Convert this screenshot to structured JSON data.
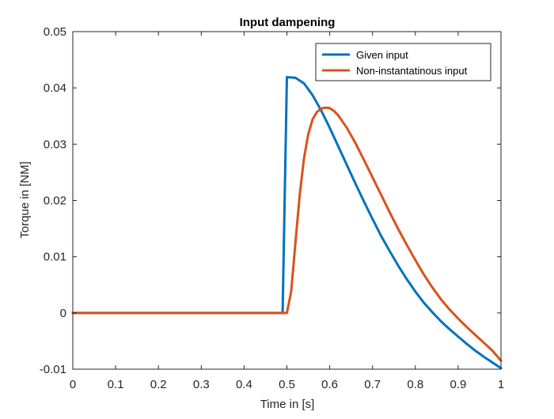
{
  "chart_data": {
    "type": "line",
    "title": "Input dampening",
    "xlabel": "Time in [s]",
    "ylabel": "Torque in [NM]",
    "xlim": [
      0,
      1
    ],
    "ylim": [
      -0.01,
      0.05
    ],
    "xticks": [
      0,
      0.1,
      0.2,
      0.3,
      0.4,
      0.5,
      0.6,
      0.7,
      0.8,
      0.9,
      1
    ],
    "xtick_labels": [
      "0",
      "0.1",
      "0.2",
      "0.3",
      "0.4",
      "0.5",
      "0.6",
      "0.7",
      "0.8",
      "0.9",
      "1"
    ],
    "yticks": [
      -0.01,
      0,
      0.01,
      0.02,
      0.03,
      0.04,
      0.05
    ],
    "ytick_labels": [
      "-0.01",
      "0",
      "0.01",
      "0.02",
      "0.03",
      "0.04",
      "0.05"
    ],
    "grid": false,
    "legend_position": "top-right",
    "series": [
      {
        "name": "Given input",
        "color": "#0072BD",
        "x": [
          0,
          0.49,
          0.5,
          0.52,
          0.54,
          0.56,
          0.58,
          0.6,
          0.62,
          0.64,
          0.66,
          0.68,
          0.7,
          0.72,
          0.74,
          0.76,
          0.78,
          0.8,
          0.82,
          0.84,
          0.86,
          0.88,
          0.9,
          0.92,
          0.94,
          0.96,
          0.98,
          1.0
        ],
        "y": [
          0,
          0,
          0.0419,
          0.0418,
          0.0408,
          0.0387,
          0.036,
          0.0329,
          0.0296,
          0.0263,
          0.023,
          0.0198,
          0.0167,
          0.0137,
          0.011,
          0.0084,
          0.006,
          0.0038,
          0.0018,
          0.0001,
          -0.0015,
          -0.0029,
          -0.0042,
          -0.0055,
          -0.0067,
          -0.0078,
          -0.0088,
          -0.0098
        ]
      },
      {
        "name": "Non-instantatinous input",
        "color": "#D95319",
        "x": [
          0,
          0.5,
          0.51,
          0.52,
          0.53,
          0.54,
          0.55,
          0.56,
          0.57,
          0.58,
          0.59,
          0.6,
          0.61,
          0.62,
          0.64,
          0.66,
          0.68,
          0.7,
          0.72,
          0.74,
          0.76,
          0.78,
          0.8,
          0.82,
          0.84,
          0.86,
          0.88,
          0.9,
          0.92,
          0.94,
          0.96,
          0.98,
          1.0
        ],
        "y": [
          0,
          0,
          0.0038,
          0.0125,
          0.021,
          0.0275,
          0.0318,
          0.0344,
          0.0357,
          0.0363,
          0.0365,
          0.0364,
          0.0359,
          0.0351,
          0.0329,
          0.0302,
          0.0272,
          0.0241,
          0.021,
          0.0179,
          0.0149,
          0.0121,
          0.0094,
          0.0068,
          0.0045,
          0.0024,
          0.0006,
          -0.001,
          -0.0025,
          -0.0039,
          -0.0053,
          -0.0067,
          -0.0085
        ]
      }
    ]
  }
}
